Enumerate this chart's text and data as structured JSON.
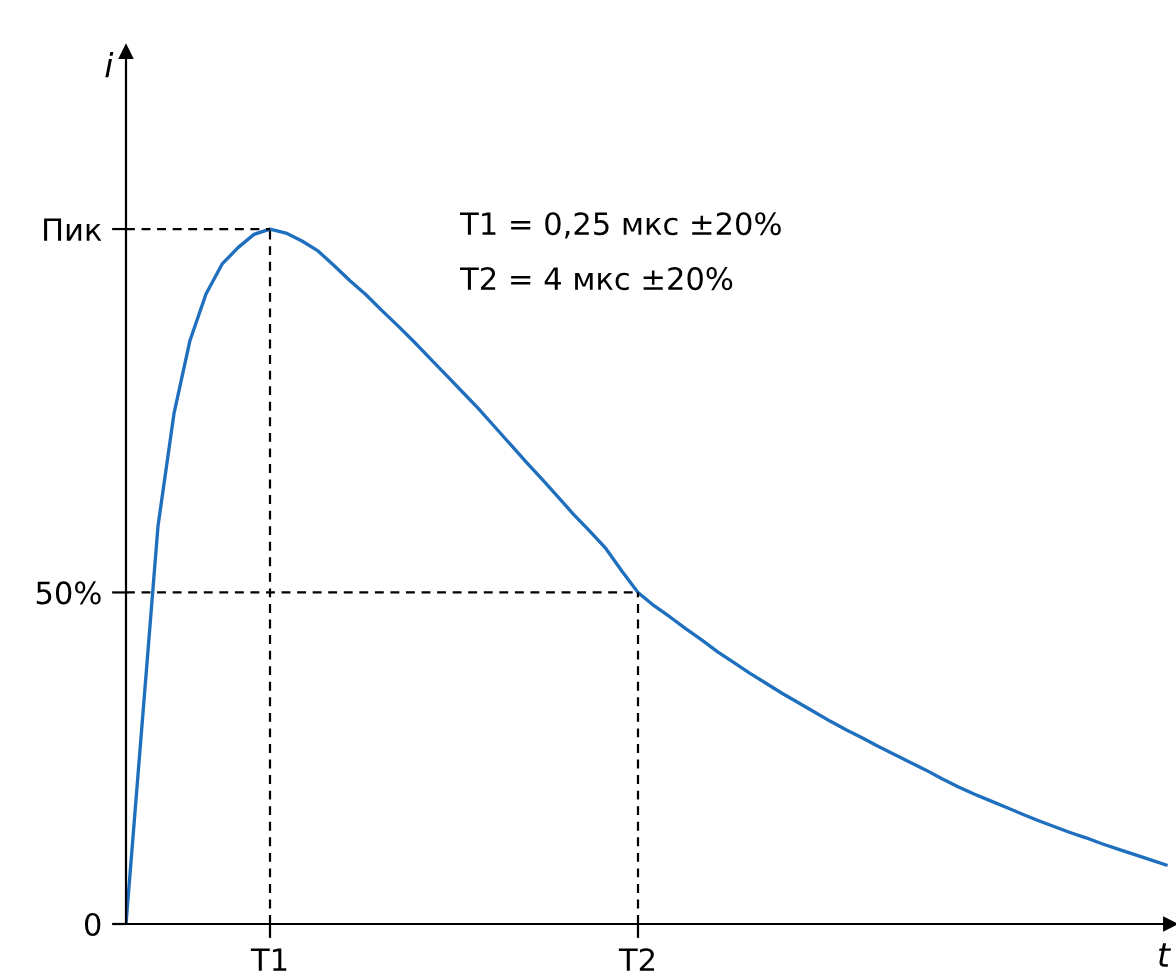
{
  "chart_data": {
    "type": "line",
    "xlabel": "t",
    "ylabel": "i",
    "annotations": [
      "T1 = 0,25 мкс ±20%",
      "T2 = 4 мкс ±20%"
    ],
    "categories": [
      null,
      null,
      null,
      null,
      null,
      null,
      null,
      null,
      null,
      "T1",
      null,
      null,
      null,
      null,
      null,
      null,
      null,
      null,
      null,
      null,
      null,
      null,
      null,
      null,
      null,
      null,
      null,
      null,
      null,
      null,
      null,
      null,
      "T2",
      null,
      null,
      null,
      null,
      null,
      null,
      null,
      null,
      null,
      null,
      null,
      null,
      null,
      null,
      null,
      null,
      null,
      null,
      null,
      null,
      null,
      null,
      null,
      null,
      null,
      null,
      null,
      null,
      null,
      null,
      null,
      null,
      null
    ],
    "series": [
      {
        "color": "#1f6fbf",
        "values": [
          0,
          30,
          60,
          77,
          88,
          95,
          99.5,
          102,
          104,
          104.8,
          104.2,
          103,
          101.5,
          99.3,
          97,
          94.9,
          92.5,
          90.2,
          87.8,
          85.3,
          82.8,
          80.3,
          77.8,
          75.1,
          72.4,
          69.7,
          67.1,
          64.4,
          61.7,
          59.2,
          56.6,
          53.2,
          50,
          48,
          46.3,
          44.5,
          42.8,
          41,
          39.4,
          37.8,
          36.3,
          34.8,
          33.4,
          32,
          30.6,
          29.3,
          28.1,
          26.8,
          25.6,
          24.4,
          23.2,
          21.9,
          20.7,
          19.6,
          18.6,
          17.6,
          16.6,
          15.6,
          14.7,
          13.8,
          13,
          12.1,
          11.3,
          10.5,
          9.7,
          8.9
        ]
      }
    ],
    "ref_lines": [
      {
        "axis": "x",
        "value": "T1",
        "color": "#000000",
        "line_style": "dashed"
      },
      {
        "axis": "x",
        "value": "T2",
        "color": "#000000",
        "line_style": "dashed"
      },
      {
        "axis": "y",
        "value": 104.8,
        "color": "#000000",
        "line_style": "dashed"
      },
      {
        "axis": "y",
        "value": 50,
        "color": "#000000",
        "line_style": "dashed"
      }
    ],
    "ylim": [
      0,
      131.5
    ],
    "yticks": [
      {
        "value": 0,
        "label": "0"
      },
      {
        "value": 50,
        "label": "50%"
      },
      {
        "value": 104.8,
        "label": "Пик"
      }
    ],
    "grid": false,
    "legend": false
  }
}
